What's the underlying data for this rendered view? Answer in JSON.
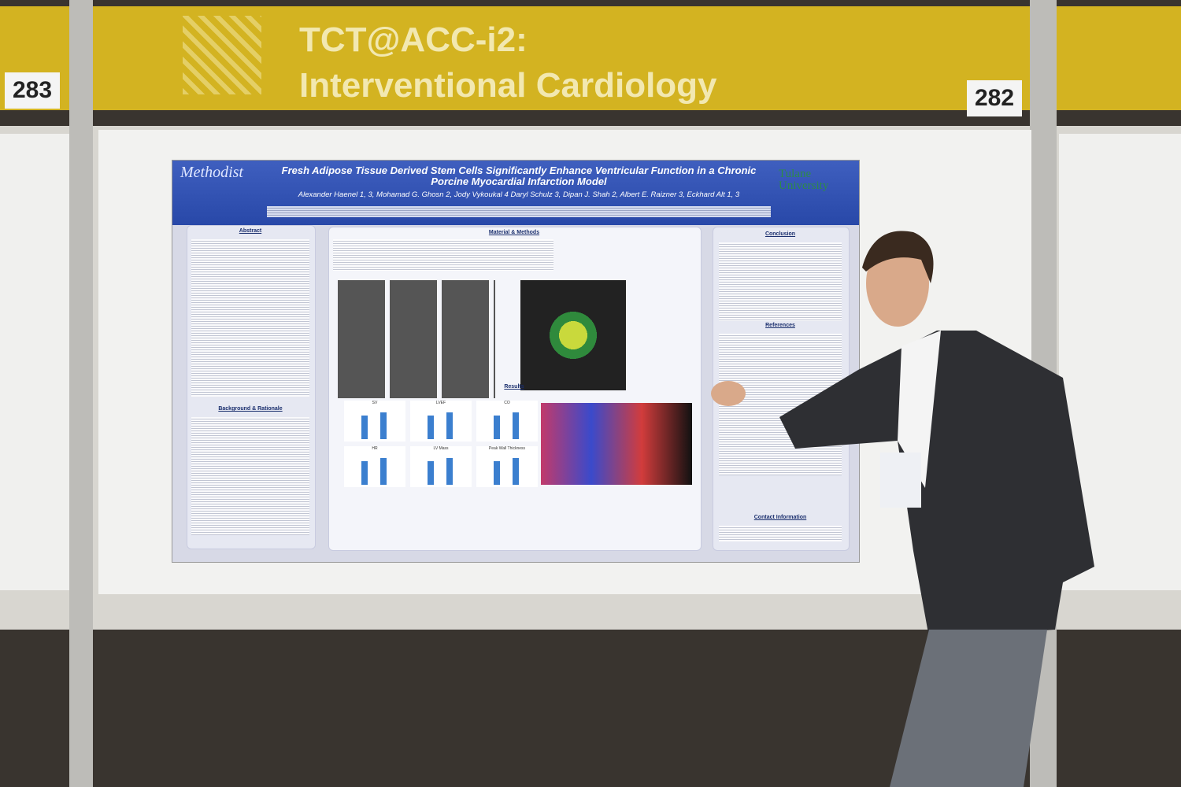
{
  "banner": {
    "line1": "TCT@ACC-i2:",
    "line2": "Interventional Cardiology"
  },
  "booths": {
    "left": "283",
    "right": "282"
  },
  "poster": {
    "logo_left": "Methodist",
    "logo_right": "Tulane University",
    "title": "Fresh Adipose Tissue Derived Stem Cells Significantly Enhance Ventricular Function in a Chronic Porcine Myocardial Infarction Model",
    "authors": "Alexander Haenel 1, 3, Mohamad G. Ghosn 2, Jody Vykoukal 4 Daryl Schulz 3, Dipan J. Shah 2, Albert E. Raizner 3, Eckhard Alt 1, 3",
    "sections": {
      "abstract": "Abstract",
      "background": "Background & Rationale",
      "methods": "Material & Methods",
      "results": "Results",
      "conclusion": "Conclusion",
      "references": "References",
      "contact": "Contact Information"
    },
    "panels": [
      "SV",
      "LVEF",
      "CO",
      "HR",
      "LV Mass",
      "Peak Wall Thickness"
    ]
  }
}
